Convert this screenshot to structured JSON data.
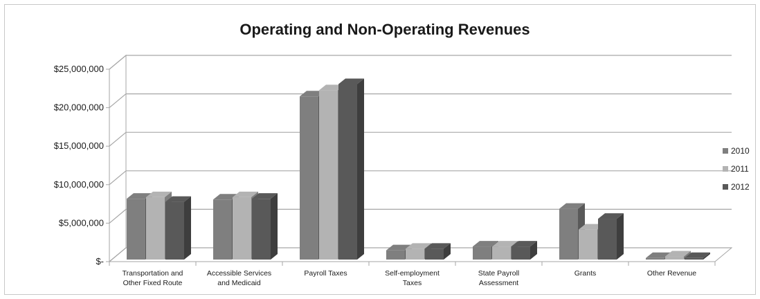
{
  "chart_data": {
    "type": "bar",
    "title": "Operating and Non-Operating Revenues",
    "categories": [
      [
        "Transportation and",
        "Other Fixed Route"
      ],
      [
        "Accessible Services",
        "and Medicaid"
      ],
      [
        "Payroll Taxes"
      ],
      [
        "Self-employment",
        "Taxes"
      ],
      [
        "State Payroll",
        "Assessment"
      ],
      [
        "Grants"
      ],
      [
        "Other Revenue"
      ]
    ],
    "series": [
      {
        "name": "2010",
        "color": "#7f7f7f",
        "values": [
          7900000,
          7800000,
          21200000,
          1200000,
          1700000,
          6600000,
          200000
        ]
      },
      {
        "name": "2011",
        "color": "#b3b3b3",
        "values": [
          8100000,
          8100000,
          22000000,
          1400000,
          1700000,
          3900000,
          400000
        ]
      },
      {
        "name": "2012",
        "color": "#595959",
        "values": [
          7500000,
          7900000,
          22800000,
          1400000,
          1700000,
          5300000,
          200000
        ]
      }
    ],
    "yticks": [
      "$-",
      "$5,000,000",
      "$10,000,000",
      "$15,000,000",
      "$20,000,000",
      "$25,000,000"
    ],
    "ylim": [
      0,
      25000000
    ],
    "legend_position": "right",
    "grid": true
  }
}
